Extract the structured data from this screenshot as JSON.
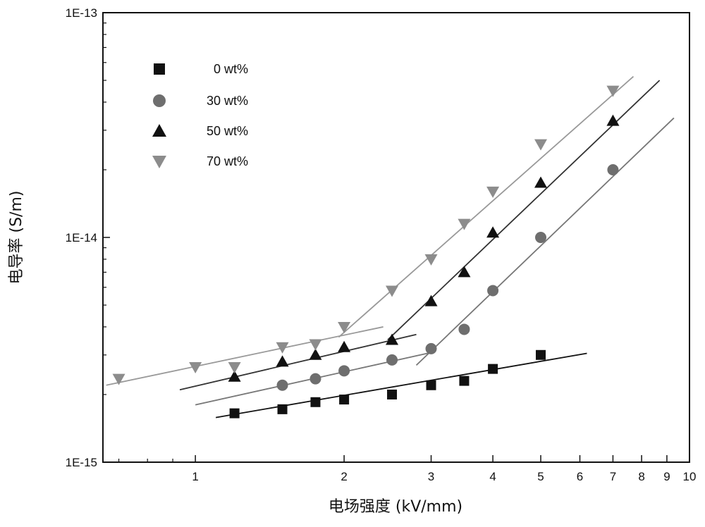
{
  "chart_data": {
    "type": "scatter",
    "title": "",
    "xlabel": "电场强度 (kV/mm)",
    "ylabel": "电导率 (S/m)",
    "x_scale": "log",
    "y_scale": "log",
    "xlim": [
      0.65,
      10
    ],
    "ylim": [
      1e-15,
      1e-13
    ],
    "x_ticks": [
      {
        "value": 1,
        "label": "1"
      },
      {
        "value": 2,
        "label": "2"
      },
      {
        "value": 3,
        "label": "3"
      },
      {
        "value": 4,
        "label": "4"
      },
      {
        "value": 5,
        "label": "5"
      },
      {
        "value": 6,
        "label": "6"
      },
      {
        "value": 7,
        "label": "7"
      },
      {
        "value": 8,
        "label": "8"
      },
      {
        "value": 9,
        "label": "9"
      },
      {
        "value": 10,
        "label": "10"
      }
    ],
    "y_ticks": [
      {
        "value": 1e-15,
        "label": "1E-15"
      },
      {
        "value": 1e-14,
        "label": "1E-14"
      },
      {
        "value": 1e-13,
        "label": "1E-13"
      }
    ],
    "grid": false,
    "legend_position": "top-left",
    "series": [
      {
        "name": "0 wt%",
        "marker": "square",
        "color": "#111111",
        "line_color": "#111111",
        "x": [
          1.2,
          1.5,
          1.75,
          2.0,
          2.5,
          3.0,
          3.5,
          4.0,
          5.0
        ],
        "y": [
          1.65e-15,
          1.72e-15,
          1.85e-15,
          1.9e-15,
          2e-15,
          2.2e-15,
          2.3e-15,
          2.6e-15,
          3e-15
        ],
        "fits": [
          {
            "x": [
              1.1,
              6.2
            ],
            "y": [
              1.58e-15,
              3.05e-15
            ]
          }
        ]
      },
      {
        "name": "30 wt%",
        "marker": "circle",
        "color": "#6e6e6e",
        "line_color": "#777777",
        "x": [
          1.5,
          1.75,
          2.0,
          2.5,
          3.0,
          3.5,
          4.0,
          5.0,
          7.0
        ],
        "y": [
          2.2e-15,
          2.35e-15,
          2.55e-15,
          2.85e-15,
          3.2e-15,
          3.9e-15,
          5.8e-15,
          1e-14,
          2e-14
        ],
        "fits": [
          {
            "x": [
              1.0,
              3.05
            ],
            "y": [
              1.8e-15,
              3.1e-15
            ]
          },
          {
            "x": [
              2.8,
              9.3
            ],
            "y": [
              2.7e-15,
              3.4e-14
            ]
          }
        ]
      },
      {
        "name": "50 wt%",
        "marker": "triangle-up",
        "color": "#111111",
        "line_color": "#333333",
        "x": [
          1.2,
          1.5,
          1.75,
          2.0,
          2.5,
          3.0,
          3.5,
          4.0,
          5.0,
          7.0
        ],
        "y": [
          2.4e-15,
          2.8e-15,
          3e-15,
          3.25e-15,
          3.5e-15,
          5.2e-15,
          7e-15,
          1.05e-14,
          1.75e-14,
          3.3e-14
        ],
        "fits": [
          {
            "x": [
              0.93,
              2.8
            ],
            "y": [
              2.1e-15,
              3.7e-15
            ]
          },
          {
            "x": [
              2.45,
              8.7
            ],
            "y": [
              3.5e-15,
              5e-14
            ]
          }
        ]
      },
      {
        "name": "70 wt%",
        "marker": "triangle-down",
        "color": "#8c8c8c",
        "line_color": "#999999",
        "x": [
          0.7,
          1.0,
          1.2,
          1.5,
          1.75,
          2.0,
          2.5,
          3.0,
          3.5,
          4.0,
          5.0,
          7.0
        ],
        "y": [
          2.35e-15,
          2.65e-15,
          2.65e-15,
          3.25e-15,
          3.35e-15,
          4e-15,
          5.8e-15,
          8e-15,
          1.15e-14,
          1.6e-14,
          2.6e-14,
          4.5e-14
        ],
        "fits": [
          {
            "x": [
              0.66,
              2.4
            ],
            "y": [
              2.2e-15,
              4e-15
            ]
          },
          {
            "x": [
              1.95,
              7.7
            ],
            "y": [
              3.6e-15,
              5.2e-14
            ]
          }
        ]
      }
    ]
  }
}
